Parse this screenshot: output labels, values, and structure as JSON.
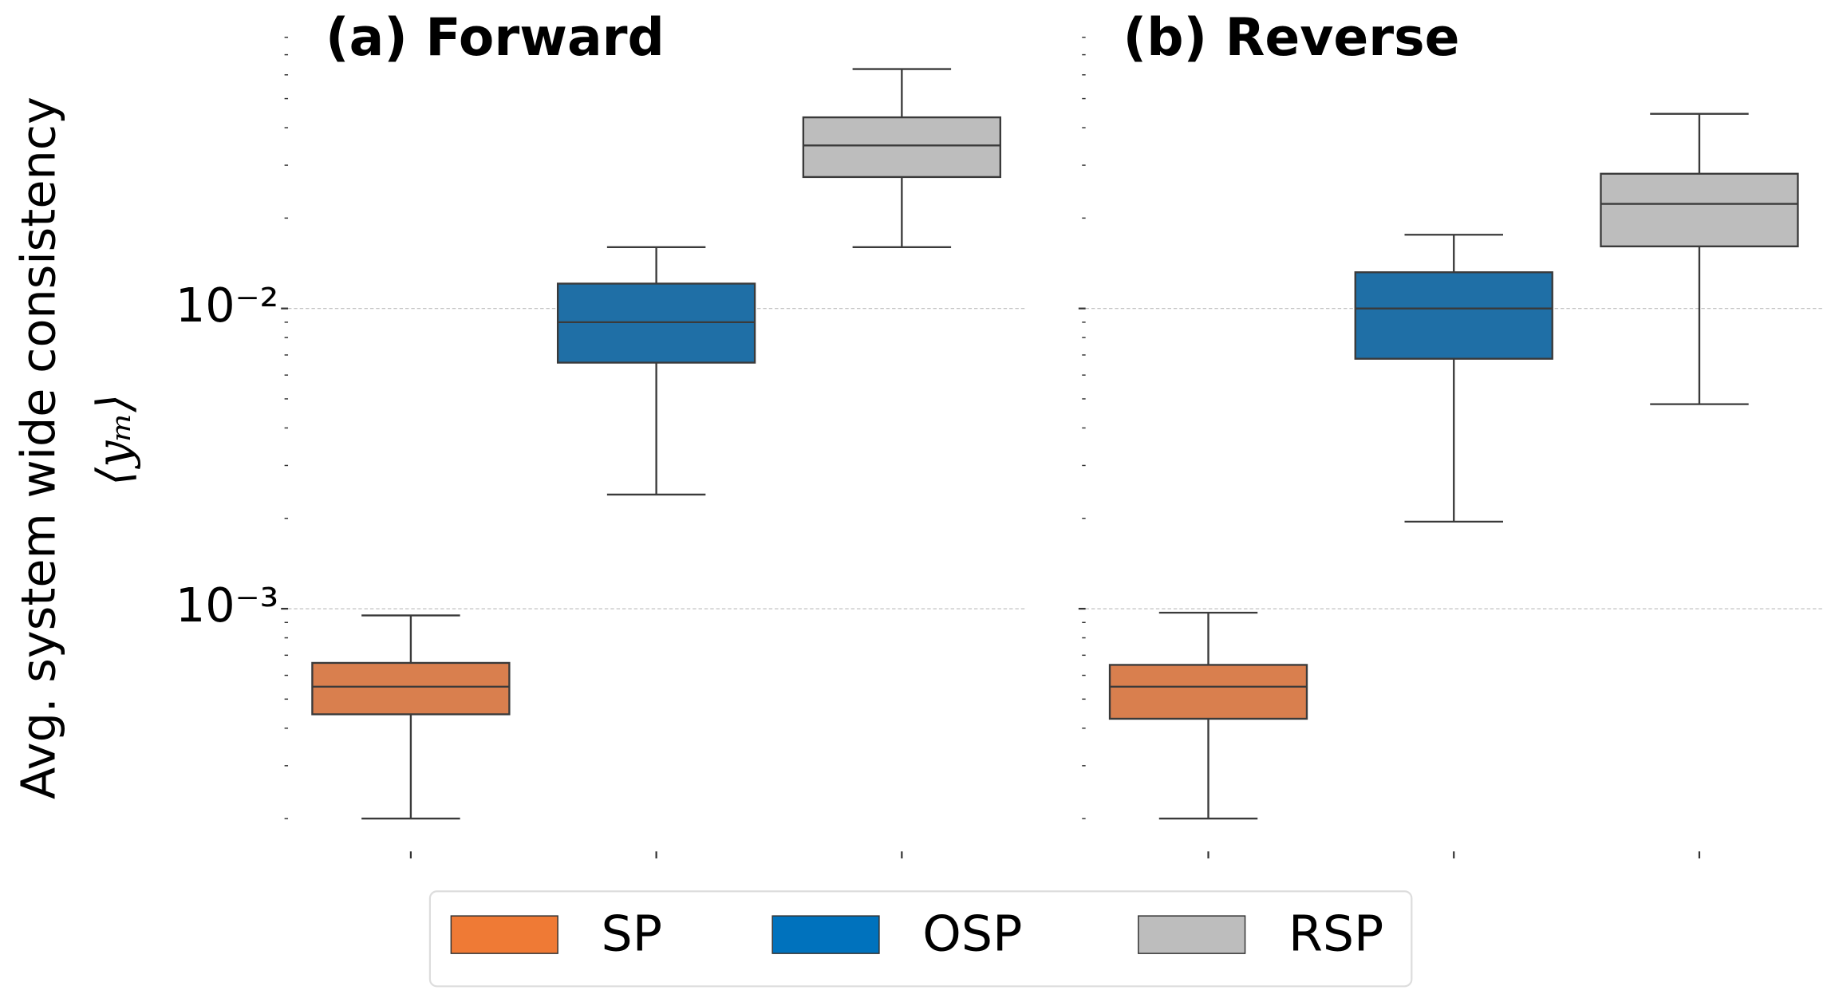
{
  "ylabel": [
    "Avg. system wide consistency",
    "⟨yₘ⟩"
  ],
  "legend": [
    {
      "name": "SP",
      "color": "#ef7a35"
    },
    {
      "name": "OSP",
      "color": "#0072bd"
    },
    {
      "name": "RSP",
      "color": "#bdbdbd"
    }
  ],
  "chart_data": [
    {
      "type": "box",
      "title": "(a) Forward",
      "log": true,
      "grid": true,
      "ylim": [
        0.00015,
        0.1
      ],
      "yticks": [
        {
          "value": 0.001,
          "label": "10⁻³"
        },
        {
          "value": 0.01,
          "label": "10⁻²"
        }
      ],
      "yminorticks": [
        0.0002,
        0.0003,
        0.0004,
        0.0005,
        0.0006,
        0.0007,
        0.0008,
        0.0009,
        0.002,
        0.003,
        0.004,
        0.005,
        0.006,
        0.007,
        0.008,
        0.009,
        0.02,
        0.03,
        0.04,
        0.05,
        0.06,
        0.07,
        0.08
      ],
      "boxes": [
        {
          "color": "#d97f4e",
          "whislo": 0.0002,
          "q1": 0.000445,
          "med": 0.00055,
          "q3": 0.00066,
          "whishi": 0.00095
        },
        {
          "color": "#1f6fa6",
          "whislo": 0.0024,
          "q1": 0.0066,
          "med": 0.009,
          "q3": 0.0121,
          "whishi": 0.016
        },
        {
          "color": "#bdbdbd",
          "whislo": 0.016,
          "q1": 0.0274,
          "med": 0.0349,
          "q3": 0.0433,
          "whishi": 0.0627
        }
      ]
    },
    {
      "type": "box",
      "title": "(b) Reverse",
      "log": true,
      "grid": true,
      "ylim": [
        0.00015,
        0.1
      ],
      "yticks": [
        0.001,
        0.01
      ],
      "yminorticks": [
        0.0002,
        0.0003,
        0.0004,
        0.0005,
        0.0006,
        0.0007,
        0.0008,
        0.0009,
        0.002,
        0.003,
        0.004,
        0.005,
        0.006,
        0.007,
        0.008,
        0.009,
        0.02,
        0.03,
        0.04,
        0.05,
        0.06,
        0.07,
        0.08
      ],
      "boxes": [
        {
          "color": "#d97f4e",
          "whislo": 0.0002,
          "q1": 0.00043,
          "med": 0.00055,
          "q3": 0.00065,
          "whishi": 0.00097
        },
        {
          "color": "#1f6fa6",
          "whislo": 0.00195,
          "q1": 0.0068,
          "med": 0.01,
          "q3": 0.0132,
          "whishi": 0.0176
        },
        {
          "color": "#bdbdbd",
          "whislo": 0.0048,
          "q1": 0.0161,
          "med": 0.0223,
          "q3": 0.0281,
          "whishi": 0.0445
        }
      ]
    }
  ]
}
